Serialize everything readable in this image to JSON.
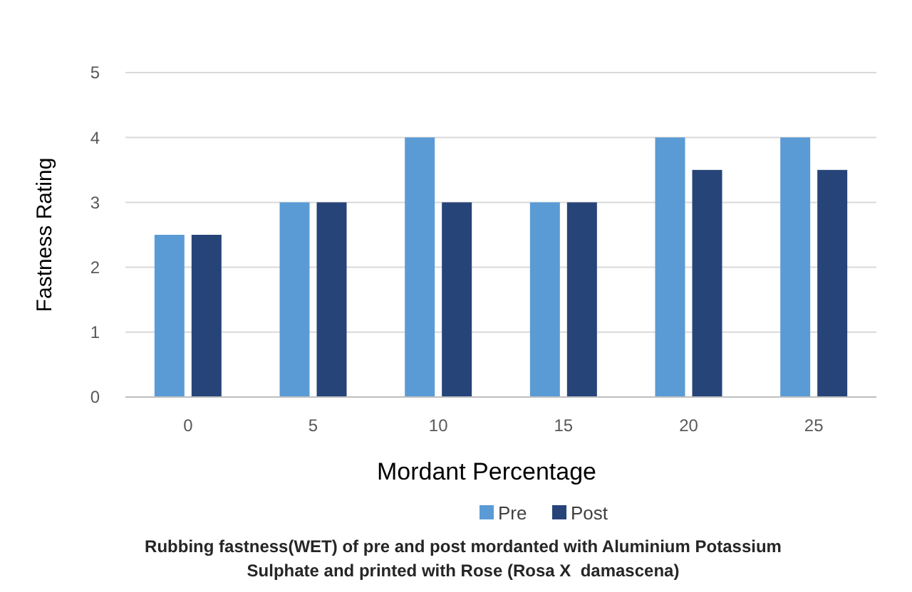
{
  "chart_data": {
    "type": "bar",
    "title": "Rubbing fastness(WET) of pre and post mordanted with Aluminium Potassium Sulphate and printed with Rose (Rosa X  damascena)",
    "xlabel": "Mordant Percentage",
    "ylabel": "Fastness Rating",
    "categories": [
      "0",
      "5",
      "10",
      "15",
      "20",
      "25"
    ],
    "series": [
      {
        "name": "Pre",
        "color": "#5b9bd5",
        "values": [
          2.5,
          3,
          4,
          3,
          4,
          4
        ]
      },
      {
        "name": "Post",
        "color": "#264478",
        "values": [
          2.5,
          3,
          3,
          3,
          3.5,
          3.5
        ]
      }
    ],
    "ylim": [
      0,
      5
    ],
    "yticks": [
      0,
      1,
      2,
      3,
      4,
      5
    ],
    "grid": "y",
    "legend": "bottom"
  }
}
